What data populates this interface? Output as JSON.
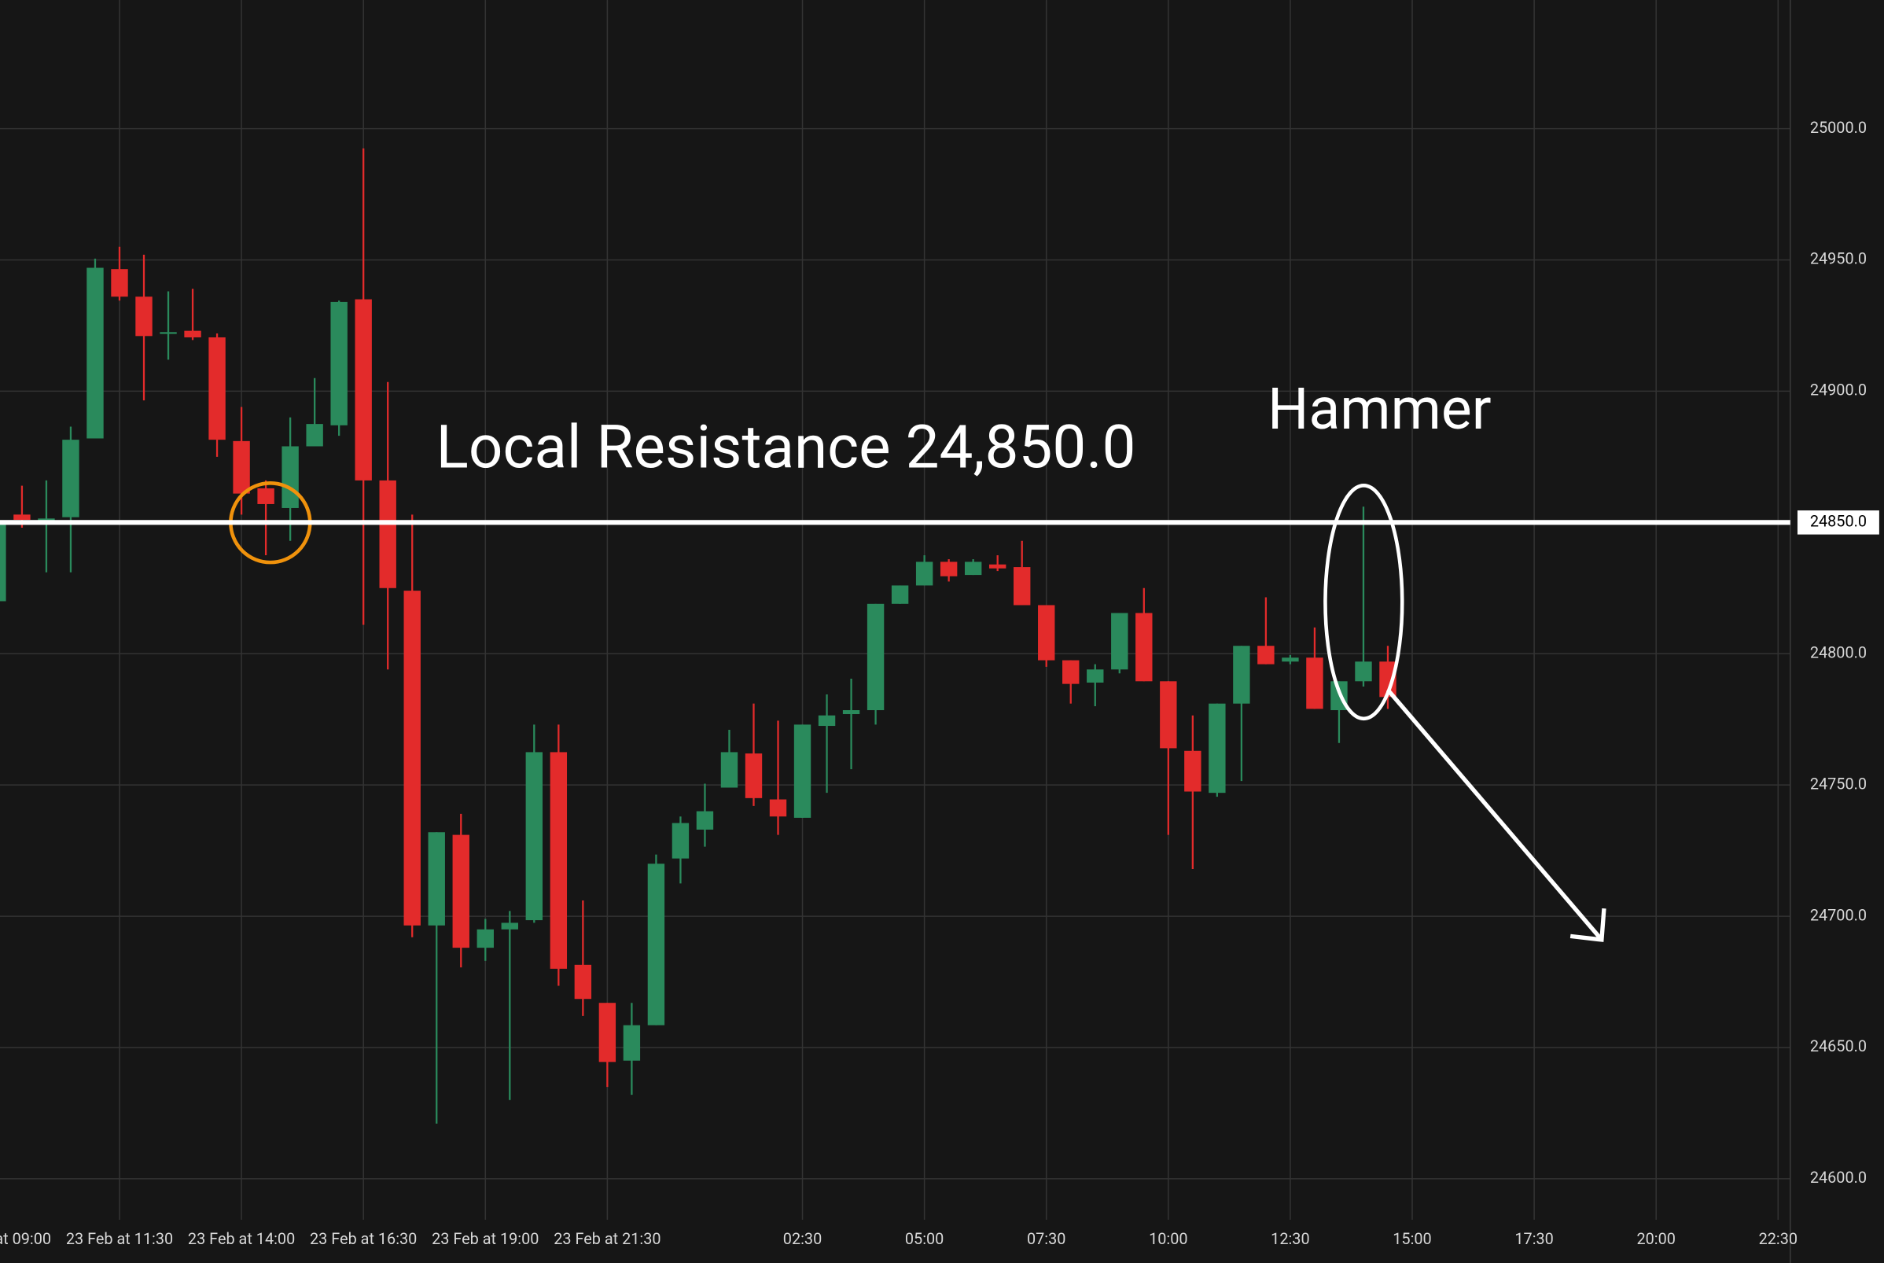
{
  "chart_data": {
    "type": "candlestick",
    "annotations": [
      "Local Resistance 24,850.0",
      "Hammer"
    ],
    "resistance_line": {
      "value": 24850,
      "label": "24850.0"
    },
    "up_color": "#2a8a5c",
    "down_color": "#e32b2b",
    "open": [
      24820,
      24853,
      24851,
      24852,
      24882,
      24946.5,
      24936,
      24922.5,
      24923,
      24920.5,
      24881,
      24863,
      24855.5,
      24879,
      24887,
      24935,
      24866,
      24824,
      24696.5,
      24731,
      24688,
      24695,
      24698.5,
      24762.5,
      24681.5,
      24667,
      24645,
      24658.5,
      24722,
      24733,
      24749,
      24762,
      24744.5,
      24737.5,
      24772.5,
      24777,
      24778.5,
      24819,
      24826,
      24835,
      24830,
      24834,
      24833,
      24818.5,
      24797.5,
      24789,
      24794,
      24815.5,
      24789.5,
      24763,
      24747,
      24781,
      24803,
      24797,
      24798.5,
      24778.5,
      24789.5,
      24797
    ],
    "high": [
      24855,
      24864,
      24866,
      24886.5,
      24950.5,
      24955,
      24952,
      24938,
      24939,
      24922,
      24894,
      24866,
      24890,
      24905,
      24934.5,
      24992.5,
      24903.5,
      24853,
      24732,
      24739,
      24699,
      24702,
      24773,
      24773,
      24706,
      24667,
      24667,
      24723.5,
      24738,
      24750.5,
      24771,
      24781,
      24774.5,
      24773,
      24784.5,
      24790.5,
      24819,
      24826,
      24837.5,
      24836,
      24836,
      24837.5,
      24843,
      24818.5,
      24797.5,
      24796,
      24815.5,
      24825,
      24789.5,
      24776.5,
      24781,
      24803,
      24821.5,
      24799.5,
      24810,
      24789.5,
      24856,
      24803
    ],
    "low": [
      24818,
      24848,
      24831,
      24831,
      24882,
      24934.5,
      24896.5,
      24912,
      24919.5,
      24875,
      24853,
      24837.5,
      24843,
      24879,
      24883,
      24811,
      24794,
      24692,
      24621,
      24680.5,
      24683,
      24630,
      24697.5,
      24673.5,
      24662,
      24635,
      24632,
      24658.5,
      24712.5,
      24726.5,
      24749,
      24742,
      24731,
      24737.5,
      24747,
      24756,
      24773,
      24819,
      24826,
      24827.5,
      24830,
      24831.5,
      24818.5,
      24795,
      24781,
      24780,
      24792.5,
      24789.5,
      24731,
      24718,
      24745.5,
      24751.5,
      24796,
      24796,
      24779,
      24766,
      24787.5,
      24779
    ],
    "close": [
      24850,
      24851,
      24851.5,
      24881.5,
      24947,
      24936,
      24921,
      24922.5,
      24920.5,
      24881.5,
      24861,
      24857,
      24879,
      24887.5,
      24934,
      24866,
      24825,
      24696.5,
      24732,
      24688,
      24695,
      24697.5,
      24762.5,
      24680,
      24668.5,
      24644.5,
      24658.5,
      24720,
      24735.5,
      24740,
      24762.5,
      24745,
      24738,
      24773,
      24776.5,
      24778.5,
      24819,
      24826,
      24835,
      24829.5,
      24835,
      24832.5,
      24818.5,
      24797.5,
      24788.5,
      24794,
      24815.5,
      24789.5,
      24764,
      24747.5,
      24781,
      24803,
      24796,
      24798.5,
      24779,
      24789.5,
      24797,
      24783.5
    ],
    "xlim": [
      0.1,
      73.5
    ],
    "xticks": [
      {
        "value": 0,
        "label": "23 Feb at 09:00"
      },
      {
        "value": 5,
        "label": "23 Feb at 11:30"
      },
      {
        "value": 10,
        "label": "23 Feb at 14:00"
      },
      {
        "value": 15,
        "label": "23 Feb at 16:30"
      },
      {
        "value": 20,
        "label": "23 Feb at 19:00"
      },
      {
        "value": 25,
        "label": "23 Feb at 21:30"
      },
      {
        "value": 33,
        "label": "02:30"
      },
      {
        "value": 38,
        "label": "05:00"
      },
      {
        "value": 43,
        "label": "07:30"
      },
      {
        "value": 48,
        "label": "10:00"
      },
      {
        "value": 53,
        "label": "12:30"
      },
      {
        "value": 58,
        "label": "15:00"
      },
      {
        "value": 63,
        "label": "17:30"
      },
      {
        "value": 68,
        "label": "20:00"
      },
      {
        "value": 73,
        "label": "22:30"
      }
    ],
    "ylim": [
      24584.4,
      25049
    ],
    "yticks": [
      {
        "value": 24600,
        "label": "24600.0"
      },
      {
        "value": 24650,
        "label": "24650.0"
      },
      {
        "value": 24700,
        "label": "24700.0"
      },
      {
        "value": 24750,
        "label": "24750.0"
      },
      {
        "value": 24800,
        "label": "24800.0"
      },
      {
        "value": 24850,
        "label": "24850.0"
      },
      {
        "value": 24900,
        "label": "24900.0"
      },
      {
        "value": 24950,
        "label": "24950.0"
      },
      {
        "value": 25000,
        "label": "25000.0"
      }
    ],
    "grid": true
  }
}
